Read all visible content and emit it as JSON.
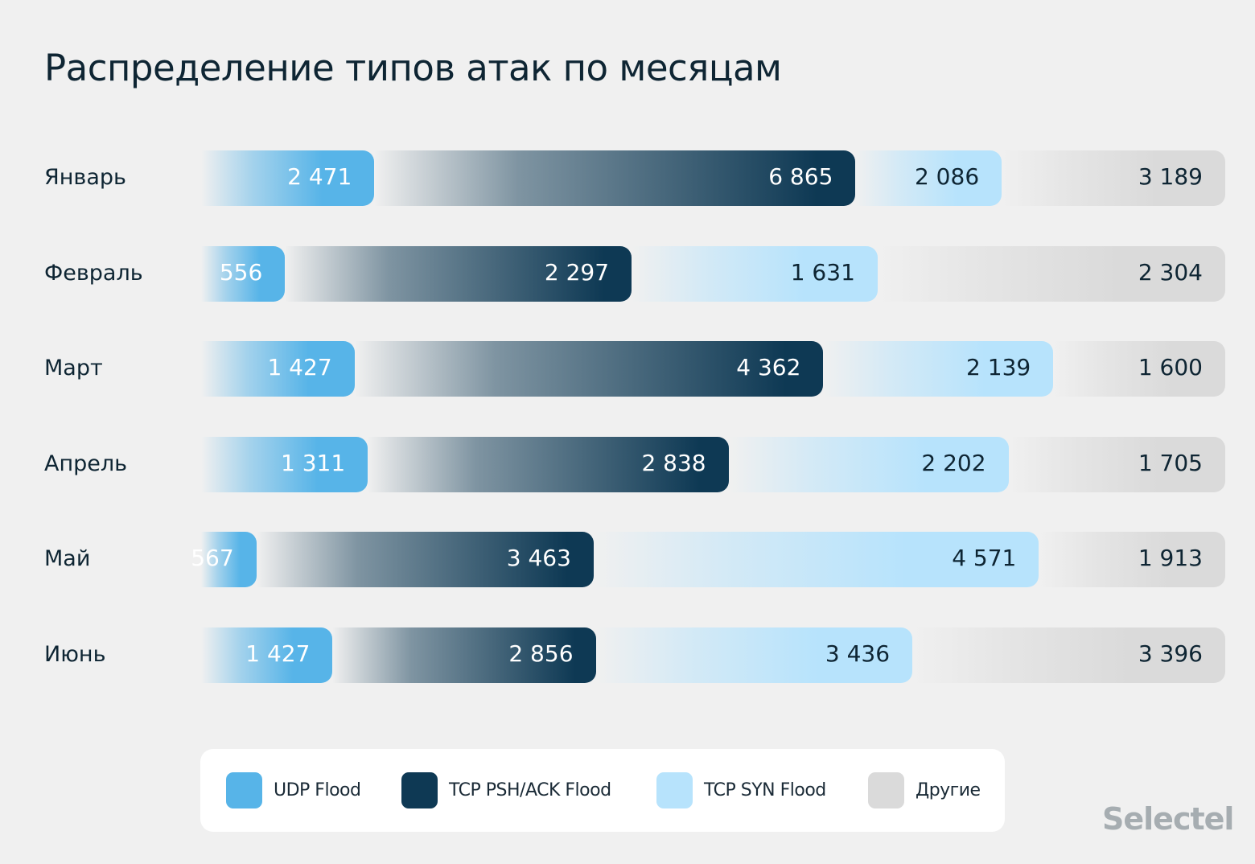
{
  "chart_data": {
    "type": "bar",
    "orientation": "horizontal",
    "stacked": "100%",
    "title": "Распределение типов атак по месяцам",
    "categories": [
      "Январь",
      "Февраль",
      "Март",
      "Апрель",
      "Май",
      "Июнь"
    ],
    "series": [
      {
        "name": "UDP Flood",
        "color": "#57b4e8",
        "label_color": "#ffffff",
        "values": [
          2471,
          556,
          1427,
          1311,
          567,
          1427
        ],
        "labels": [
          "2 471",
          "556",
          "1 427",
          "1 311",
          "567",
          "1 427"
        ]
      },
      {
        "name": "TCP PSH/ACK Flood",
        "color": "#0e3954",
        "label_color": "#ffffff",
        "values": [
          6865,
          2297,
          4362,
          2838,
          3463,
          2856
        ],
        "labels": [
          "6 865",
          "2 297",
          "4 362",
          "2 838",
          "3 463",
          "2 856"
        ]
      },
      {
        "name": "TCP SYN Flood",
        "color": "#b7e3fc",
        "label_color": "#0e2533",
        "values": [
          2086,
          1631,
          2139,
          2202,
          4571,
          3436
        ],
        "labels": [
          "2 086",
          "1 631",
          "2 139",
          "2 202",
          "4 571",
          "3 436"
        ]
      },
      {
        "name": "Другие",
        "color": "#dadada",
        "label_color": "#0e2533",
        "values": [
          3189,
          2304,
          1600,
          1705,
          1913,
          3396
        ],
        "labels": [
          "3 189",
          "2 304",
          "1 600",
          "1 705",
          "1 913",
          "3 396"
        ]
      }
    ],
    "legend": "bottom",
    "grid": false
  },
  "brand": "Selectel"
}
